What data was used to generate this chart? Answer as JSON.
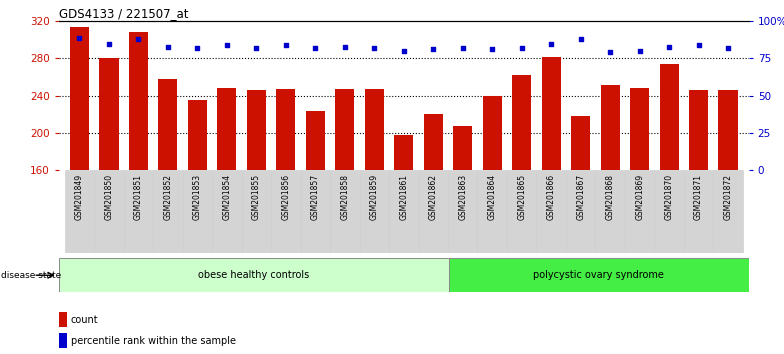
{
  "title": "GDS4133 / 221507_at",
  "samples": [
    "GSM201849",
    "GSM201850",
    "GSM201851",
    "GSM201852",
    "GSM201853",
    "GSM201854",
    "GSM201855",
    "GSM201856",
    "GSM201857",
    "GSM201858",
    "GSM201859",
    "GSM201861",
    "GSM201862",
    "GSM201863",
    "GSM201864",
    "GSM201865",
    "GSM201866",
    "GSM201867",
    "GSM201868",
    "GSM201869",
    "GSM201870",
    "GSM201871",
    "GSM201872"
  ],
  "counts": [
    314,
    280,
    308,
    258,
    235,
    248,
    246,
    247,
    223,
    247,
    247,
    198,
    220,
    207,
    240,
    262,
    282,
    218,
    251,
    248,
    274,
    246,
    246
  ],
  "percentiles": [
    89,
    85,
    88,
    83,
    82,
    84,
    82,
    84,
    82,
    83,
    82,
    80,
    81,
    82,
    81,
    82,
    85,
    88,
    79,
    80,
    83,
    84,
    82
  ],
  "group1_label": "obese healthy controls",
  "group2_label": "polycystic ovary syndrome",
  "group1_count": 13,
  "group2_count": 10,
  "ymin": 160,
  "ymax": 320,
  "yticks": [
    160,
    200,
    240,
    280,
    320
  ],
  "y2min": 0,
  "y2max": 100,
  "y2ticks": [
    0,
    25,
    50,
    75,
    100
  ],
  "bar_color": "#cc1100",
  "dot_color": "#0000cc",
  "bg_color": "#ffffff",
  "group1_color": "#ccffcc",
  "group2_color": "#44ee44",
  "grid_color": "#000000",
  "axis_label_color_left": "#cc1100",
  "axis_label_color_right": "#0000cc",
  "legend_count_label": "count",
  "legend_pct_label": "percentile rank within the sample",
  "disease_state_label": "disease state"
}
